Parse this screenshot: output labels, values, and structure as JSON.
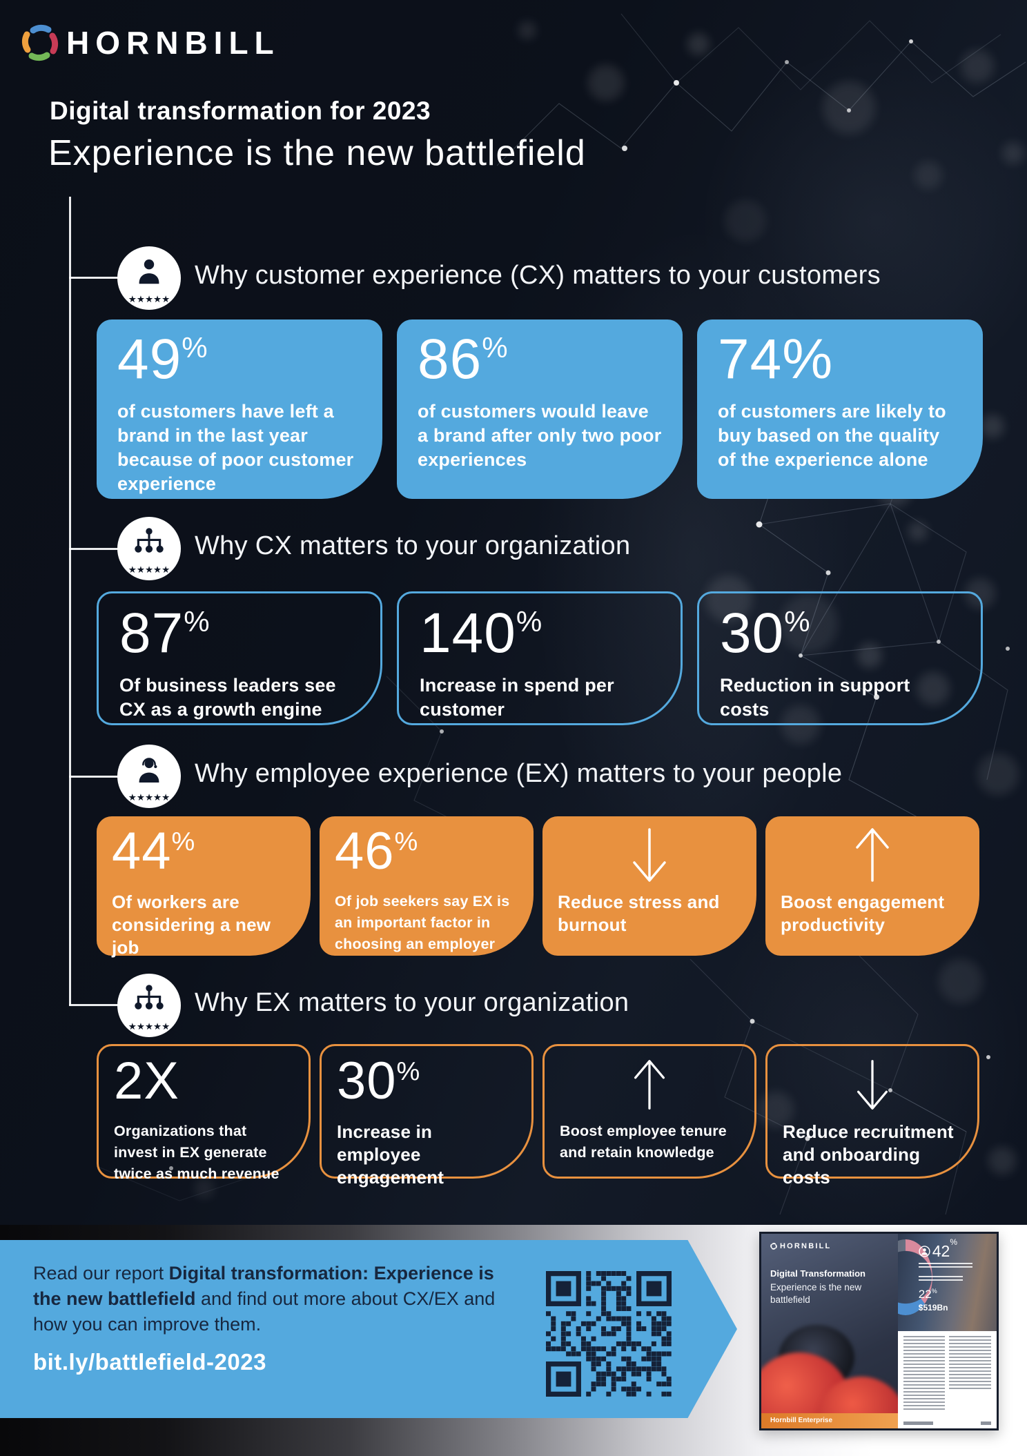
{
  "brand": {
    "name": "HORNBILL"
  },
  "header": {
    "title": "Digital transformation for 2023",
    "subtitle": "Experience is the new battlefield"
  },
  "sections": [
    {
      "title": "Why customer experience (CX) matters to your customers",
      "cards": [
        {
          "stat": "49",
          "sup": "%",
          "text": "of customers have left a brand in the last year because of poor customer experience"
        },
        {
          "stat": "86",
          "sup": "%",
          "text": "of customers would leave a brand after only two poor experiences"
        },
        {
          "stat": "74%",
          "text": "of customers are likely to buy based on the quality of the experience alone"
        }
      ]
    },
    {
      "title": "Why CX matters to your organization",
      "cards": [
        {
          "stat": "87",
          "sup": "%",
          "text": "Of business leaders see CX as a growth engine"
        },
        {
          "stat": "140",
          "sup": "%",
          "text": "Increase in spend per customer"
        },
        {
          "stat": "30",
          "sup": "%",
          "text": "Reduction in support costs"
        }
      ]
    },
    {
      "title": "Why employee experience (EX) matters to your people",
      "cards": [
        {
          "stat": "44",
          "sup": "%",
          "text": "Of workers are considering a new job"
        },
        {
          "stat": "46",
          "sup": "%",
          "text": "Of job seekers say EX is an important factor in choosing an employer"
        },
        {
          "icon": "arrow-down",
          "text": "Reduce stress and burnout"
        },
        {
          "icon": "arrow-up",
          "text": "Boost engagement productivity"
        }
      ]
    },
    {
      "title": "Why EX matters to your organization",
      "cards": [
        {
          "stat": "2X",
          "text": "Organizations that invest in EX generate twice as much revenue"
        },
        {
          "stat": "30",
          "sup": "%",
          "text": "Increase in employee engagement"
        },
        {
          "icon": "arrow-up",
          "text": "Boost employee tenure and retain knowledge"
        },
        {
          "icon": "arrow-down",
          "text": "Reduce recruitment and onboarding costs"
        }
      ]
    }
  ],
  "footer": {
    "cta_pre": "Read our report ",
    "cta_bold": "Digital transformation: Experience is the new battlefield",
    "cta_post": " and find out more about CX/EX and how you can improve them.",
    "link": "bit.ly/battlefield-2023"
  },
  "report": {
    "logo": "HORNBILL",
    "title": "Digital Transformation",
    "subtitle": "Experience is the new battlefield",
    "stat1": "42",
    "stat1_unit": "%",
    "stat2": "22",
    "stat2_unit": "%",
    "stat3": "$519Bn",
    "footer_bar": "Hornbill Enterprise"
  },
  "colors": {
    "blue": "#54a9de",
    "orange": "#e8913f",
    "navy_text": "#17273f",
    "background": "#0c111b",
    "white": "#ffffff"
  }
}
